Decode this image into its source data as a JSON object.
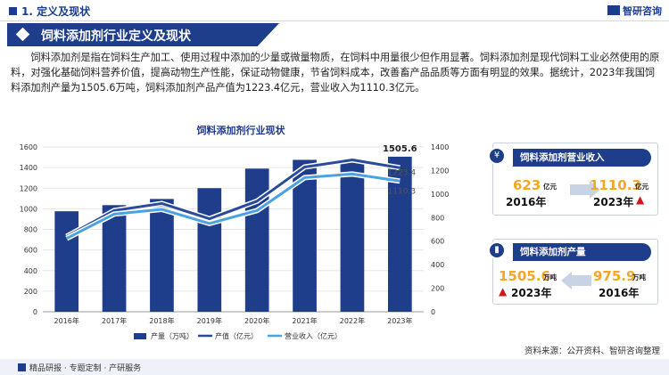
{
  "header": {
    "section": "1. 定义及现状",
    "logo": "智研咨询"
  },
  "banner": {
    "title": "饲料添加剂行业定义及现状"
  },
  "intro": "饲料添加剂是指在饲料生产加工、使用过程中添加的少量或微量物质，在饲料中用量很少但作用显著。饲料添加剂是现代饲料工业必然使用的原料，对强化基础饲料营养价值，提高动物生产性能，保证动物健康，节省饲料成本，改善畜产品品质等方面有明显的效果。据统计，2023年我国饲料添加剂产量为1505.6万吨，饲料添加剂产品产值为1223.4亿元，营业收入为1110.3亿元。",
  "chart_data": {
    "type": "bar",
    "title": "饲料添加剂行业现状",
    "categories": [
      "2016年",
      "2017年",
      "2018年",
      "2019年",
      "2020年",
      "2021年",
      "2022年",
      "2023年"
    ],
    "series": [
      {
        "name": "产量（万吨）",
        "type": "bar",
        "axis": "left",
        "values": [
          975.9,
          1035,
          1095,
          1200,
          1390,
          1475,
          1470,
          1505.6
        ],
        "color": "#1e3d8b"
      },
      {
        "name": "产值（亿元）",
        "type": "line",
        "axis": "right",
        "values": [
          640,
          860,
          920,
          790,
          940,
          1230,
          1290,
          1223.4
        ],
        "color": "#2a4a9a"
      },
      {
        "name": "营业收入（亿元）",
        "type": "line",
        "axis": "right",
        "values": [
          623,
          830,
          870,
          750,
          860,
          1140,
          1170,
          1110.3
        ],
        "color": "#4aa3e0"
      }
    ],
    "ylim_left": [
      0,
      1600
    ],
    "ylim_right": [
      0,
      1400
    ],
    "yticks_left": [
      "0",
      "200",
      "400",
      "600",
      "800",
      "1000",
      "1200",
      "1400",
      "1600"
    ],
    "yticks_right": [
      "0",
      "200",
      "400",
      "600",
      "800",
      "1000",
      "1200",
      "1400"
    ],
    "data_labels": [
      "1505.6",
      "1223.4",
      "1110.3"
    ],
    "legend_position": "bottom"
  },
  "card_revenue": {
    "title": "饲料添加剂营业收入",
    "from_value": "623",
    "from_unit": "亿元",
    "from_year": "2016年",
    "to_value": "1110.3",
    "to_unit": "亿元",
    "to_year": "2023年"
  },
  "card_output": {
    "title": "饲料添加剂产量",
    "from_value": "1505.6",
    "from_unit": "万吨",
    "from_year": "2023年",
    "to_value": "975.9",
    "to_unit": "万吨",
    "to_year": "2016年"
  },
  "footer": {
    "left": "精品研报 · 专题定制 · 产研服务",
    "source": "资料来源：公开资料、智研咨询整理"
  },
  "colors": {
    "primary": "#1e3d8b",
    "accent": "#f6a623",
    "light_line": "#4aa3e0",
    "arrow_up": "#d0181c"
  }
}
